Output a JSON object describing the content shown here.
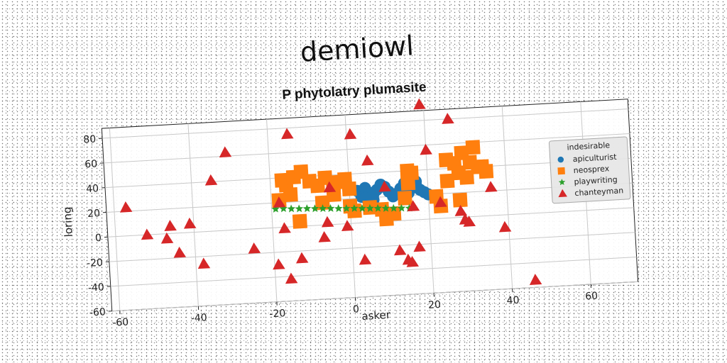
{
  "figure_title": "demiowl",
  "chart_data": {
    "type": "scatter",
    "title": "P phytolatry plumasite",
    "xlabel": "asker",
    "ylabel": "loring",
    "xlim": [
      -62,
      72
    ],
    "ylim": [
      -60,
      88
    ],
    "xticks": [
      -60,
      -40,
      -20,
      0,
      20,
      40,
      60
    ],
    "yticks": [
      -60,
      -40,
      -20,
      0,
      20,
      40,
      60,
      80
    ],
    "grid": true,
    "legend": {
      "title": "indesirable",
      "placement": "center-right"
    },
    "series": [
      {
        "name": "apiculturist",
        "marker": "circle",
        "color": "#1f77b4",
        "points": [
          [
            2,
            26
          ],
          [
            3,
            21
          ],
          [
            4,
            28
          ],
          [
            5,
            24
          ],
          [
            6,
            22
          ],
          [
            7,
            26
          ],
          [
            8,
            30
          ],
          [
            9,
            28
          ],
          [
            10,
            24
          ],
          [
            11,
            20
          ],
          [
            12,
            22
          ],
          [
            13,
            26
          ],
          [
            14,
            30
          ],
          [
            15,
            22
          ],
          [
            16,
            26
          ],
          [
            17,
            28
          ],
          [
            18,
            24
          ],
          [
            19,
            22
          ],
          [
            20,
            20
          ],
          [
            6,
            18
          ],
          [
            14,
            18
          ],
          [
            17,
            31
          ],
          [
            4,
            20
          ]
        ]
      },
      {
        "name": "neosprex",
        "marker": "square",
        "color": "#ff7f0e",
        "points": [
          [
            -17,
            38
          ],
          [
            -16,
            34
          ],
          [
            -14,
            40
          ],
          [
            -12,
            44
          ],
          [
            -10,
            36
          ],
          [
            -8,
            32
          ],
          [
            -6,
            38
          ],
          [
            -4,
            30
          ],
          [
            -3,
            34
          ],
          [
            -1,
            36
          ],
          [
            0,
            28
          ],
          [
            -18,
            22
          ],
          [
            -15,
            26
          ],
          [
            -13,
            4
          ],
          [
            -7,
            18
          ],
          [
            -4,
            24
          ],
          [
            0,
            14
          ],
          [
            1,
            10
          ],
          [
            5,
            12
          ],
          [
            8,
            10
          ],
          [
            9,
            2
          ],
          [
            11,
            6
          ],
          [
            14,
            18
          ],
          [
            15,
            30
          ],
          [
            15,
            40
          ],
          [
            16,
            38
          ],
          [
            22,
            18
          ],
          [
            23,
            10
          ],
          [
            25,
            30
          ],
          [
            25,
            47
          ],
          [
            27,
            44
          ],
          [
            28,
            14
          ],
          [
            28,
            36
          ],
          [
            29,
            52
          ],
          [
            30,
            32
          ],
          [
            31,
            44
          ],
          [
            32,
            56
          ],
          [
            33,
            40
          ],
          [
            34,
            40
          ],
          [
            35,
            36
          ]
        ]
      },
      {
        "name": "playwriting",
        "marker": "star",
        "color": "#2ca02c",
        "points": [
          [
            -19,
            15
          ],
          [
            -17,
            15
          ],
          [
            -15,
            14.5
          ],
          [
            -13,
            14.2
          ],
          [
            -11,
            14
          ],
          [
            -9,
            13.6
          ],
          [
            -7,
            13.3
          ],
          [
            -5,
            13
          ],
          [
            -3,
            12.6
          ],
          [
            -1,
            12.3
          ],
          [
            1,
            12
          ],
          [
            3,
            11.6
          ],
          [
            5,
            11.3
          ],
          [
            7,
            11
          ],
          [
            9,
            10.6
          ],
          [
            11,
            10.3
          ],
          [
            13,
            10
          ],
          [
            15,
            9.7
          ]
        ]
      },
      {
        "name": "chanteyman",
        "marker": "triangle",
        "color": "#d62728",
        "points": [
          [
            -57,
            23
          ],
          [
            -52,
            0
          ],
          [
            -47,
            -4
          ],
          [
            -46,
            6
          ],
          [
            -44,
            -16
          ],
          [
            -41,
            7
          ],
          [
            -38,
            -26
          ],
          [
            -35,
            41
          ],
          [
            -31,
            63
          ],
          [
            -25,
            -16
          ],
          [
            -19,
            -30
          ],
          [
            -18,
            20
          ],
          [
            -17,
            -1
          ],
          [
            -16,
            -42
          ],
          [
            -15,
            75
          ],
          [
            -13,
            -26
          ],
          [
            -7,
            -10
          ],
          [
            -6,
            2
          ],
          [
            -5,
            30
          ],
          [
            -1,
            -2
          ],
          [
            1,
            72
          ],
          [
            3,
            -30
          ],
          [
            5,
            50
          ],
          [
            9,
            28
          ],
          [
            12,
            -24
          ],
          [
            14,
            -32
          ],
          [
            15,
            -34
          ],
          [
            16,
            11
          ],
          [
            17,
            -22
          ],
          [
            19,
            93
          ],
          [
            20,
            56
          ],
          [
            23,
            13
          ],
          [
            26,
            80
          ],
          [
            28,
            5
          ],
          [
            29,
            -2
          ],
          [
            30,
            -4
          ],
          [
            36,
            23
          ],
          [
            39,
            -10
          ],
          [
            46,
            -54
          ]
        ]
      }
    ]
  }
}
